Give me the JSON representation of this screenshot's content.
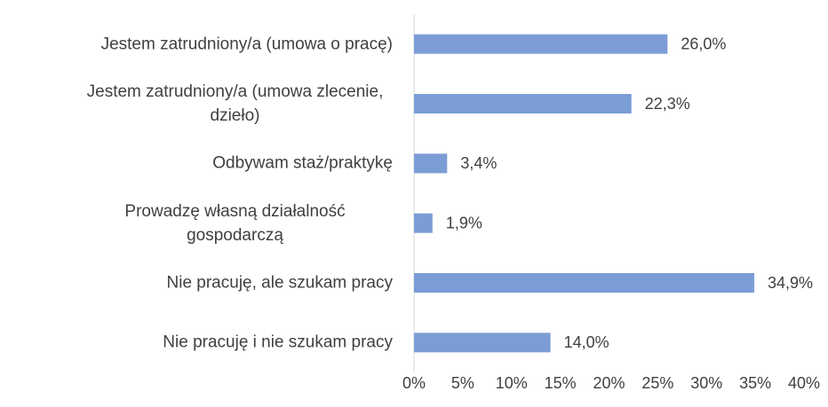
{
  "chart_data": {
    "type": "bar",
    "orientation": "horizontal",
    "categories": [
      "Jestem zatrudniony/a (umowa o pracę)",
      "Jestem zatrudniony/a (umowa zlecenie, dzieło)",
      "Odbywam staż/praktykę",
      "Prowadzę własną działalność gospodarczą",
      "Nie pracuję, ale szukam pracy",
      "Nie pracuję i nie szukam pracy"
    ],
    "values": [
      26.0,
      22.3,
      3.4,
      1.9,
      34.9,
      14.0
    ],
    "value_labels": [
      "26,0%",
      "22,3%",
      "3,4%",
      "1,9%",
      "34,9%",
      "14,0%"
    ],
    "color": "#7b9dd6",
    "xlim": [
      0,
      40
    ],
    "xticks": [
      {
        "value": 0,
        "label": "0%"
      },
      {
        "value": 5,
        "label": "5%"
      },
      {
        "value": 10,
        "label": "10%"
      },
      {
        "value": 15,
        "label": "15%"
      },
      {
        "value": 20,
        "label": "20%"
      },
      {
        "value": 25,
        "label": "25%"
      },
      {
        "value": 30,
        "label": "30%"
      },
      {
        "value": 35,
        "label": "35%"
      },
      {
        "value": 40,
        "label": "40%"
      }
    ],
    "grid": false
  }
}
